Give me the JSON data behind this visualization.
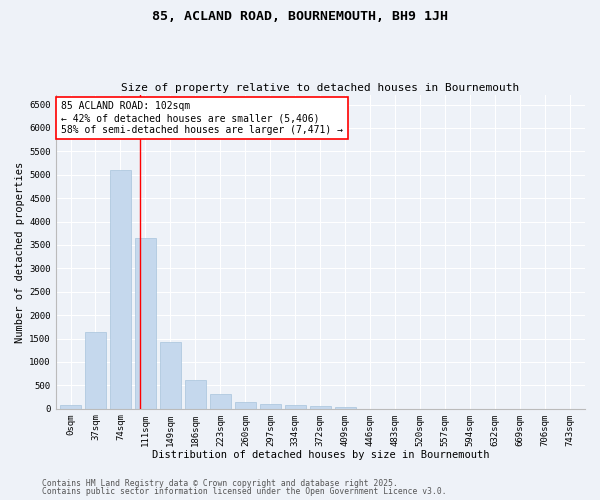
{
  "title1": "85, ACLAND ROAD, BOURNEMOUTH, BH9 1JH",
  "title2": "Size of property relative to detached houses in Bournemouth",
  "xlabel": "Distribution of detached houses by size in Bournemouth",
  "ylabel": "Number of detached properties",
  "bar_labels": [
    "0sqm",
    "37sqm",
    "74sqm",
    "111sqm",
    "149sqm",
    "186sqm",
    "223sqm",
    "260sqm",
    "297sqm",
    "334sqm",
    "372sqm",
    "409sqm",
    "446sqm",
    "483sqm",
    "520sqm",
    "557sqm",
    "594sqm",
    "632sqm",
    "669sqm",
    "706sqm",
    "743sqm"
  ],
  "bar_values": [
    75,
    1650,
    5100,
    3650,
    1430,
    620,
    310,
    145,
    100,
    70,
    50,
    35,
    0,
    0,
    0,
    0,
    0,
    0,
    0,
    0,
    0
  ],
  "bar_color": "#C5D8ED",
  "bar_edge_color": "#A8C4DC",
  "vline_x": 2.77,
  "vline_color": "red",
  "annotation_text": "85 ACLAND ROAD: 102sqm\n← 42% of detached houses are smaller (5,406)\n58% of semi-detached houses are larger (7,471) →",
  "annotation_box_color": "white",
  "annotation_box_edgecolor": "red",
  "ylim": [
    0,
    6700
  ],
  "yticks": [
    0,
    500,
    1000,
    1500,
    2000,
    2500,
    3000,
    3500,
    4000,
    4500,
    5000,
    5500,
    6000,
    6500
  ],
  "footer1": "Contains HM Land Registry data © Crown copyright and database right 2025.",
  "footer2": "Contains public sector information licensed under the Open Government Licence v3.0.",
  "bg_color": "#EEF2F8",
  "plot_bg_color": "#EEF2F8",
  "grid_color": "white",
  "title1_fontsize": 9.5,
  "title2_fontsize": 8,
  "axis_label_fontsize": 7.5,
  "tick_fontsize": 6.5,
  "annotation_fontsize": 7,
  "footer_fontsize": 5.8
}
